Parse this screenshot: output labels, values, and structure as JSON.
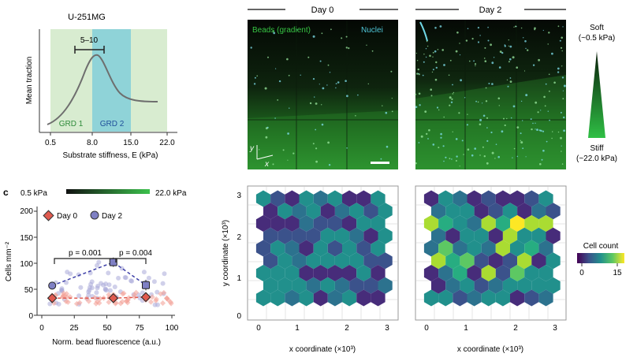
{
  "panel_b": {
    "title": "U-251MG",
    "ylabel": "Mean traction",
    "xlabel": "Substrate stiffness, E (kPa)",
    "xticks": [
      "0.5",
      "8.0",
      "15.0",
      "22.0"
    ],
    "region1": "GRD 1",
    "region2": "GRD 2",
    "bracket": "5–10",
    "colors": {
      "grd1": "#d8ecd0",
      "grd2": "#8fd3d8",
      "curve": "#6e6e6e"
    }
  },
  "micro": {
    "day0": "Day 0",
    "day2": "Day 2",
    "beads_label": "Beads (gradient)",
    "nuclei_label": "Nuclei",
    "axis_y": "y",
    "axis_x": "x",
    "soft": "Soft",
    "soft_val": "(~0.5 kPa)",
    "stiff": "Stiff",
    "stiff_val": "(~22.0 kPa)"
  },
  "panel_c": {
    "letter": "c",
    "bar_left": "0.5 kPa",
    "bar_right": "22.0 kPa",
    "legend_day0": "Day 0",
    "legend_day2": "Day 2",
    "p1": "p = 0.001",
    "p2": "p = 0.004",
    "ylabel": "Cells mm⁻²",
    "xlabel": "Norm. bead fluorescence (a.u.)",
    "xticks": [
      "0",
      "25",
      "50",
      "75",
      "100"
    ],
    "yticks": [
      "0",
      "50",
      "100",
      "150",
      "200"
    ]
  },
  "hex": {
    "ylabel": "y coordinate (×10³)",
    "xlabel": "x coordinate (×10³)",
    "xticks": [
      "0",
      "1",
      "2",
      "3"
    ],
    "yticks": [
      "0",
      "1",
      "2",
      "3"
    ],
    "colorbar_title": "Cell count",
    "cb_min": "0",
    "cb_max": "15"
  },
  "chart_data": [
    {
      "type": "line",
      "title": "U-251MG",
      "xlabel": "Substrate stiffness, E (kPa)",
      "ylabel": "Mean traction",
      "x": [
        0.5,
        3,
        5,
        7,
        8.5,
        10,
        12,
        15,
        18,
        20
      ],
      "y": [
        0.1,
        0.2,
        0.45,
        0.75,
        0.85,
        0.7,
        0.5,
        0.38,
        0.36,
        0.36
      ]
    },
    {
      "type": "scatter",
      "xlabel": "Norm. bead fluorescence (a.u.)",
      "ylabel": "Cells mm⁻²",
      "ylim": [
        0,
        210
      ],
      "xlim": [
        0,
        100
      ],
      "series": [
        {
          "name": "Day 0",
          "x": [
            8,
            55,
            80
          ],
          "y": [
            33,
            33,
            35
          ],
          "err": [
            4,
            5,
            5
          ]
        },
        {
          "name": "Day 2",
          "x": [
            8,
            55,
            80
          ],
          "y": [
            57,
            102,
            58
          ],
          "err": [
            6,
            9,
            10
          ]
        }
      ]
    },
    {
      "type": "heatmap",
      "title": "Day 0",
      "xlabel": "x coordinate (×10³)",
      "ylabel": "y coordinate (×10³)"
    },
    {
      "type": "heatmap",
      "title": "Day 2",
      "xlabel": "x coordinate (×10³)",
      "ylabel": "y coordinate (×10³)"
    }
  ]
}
